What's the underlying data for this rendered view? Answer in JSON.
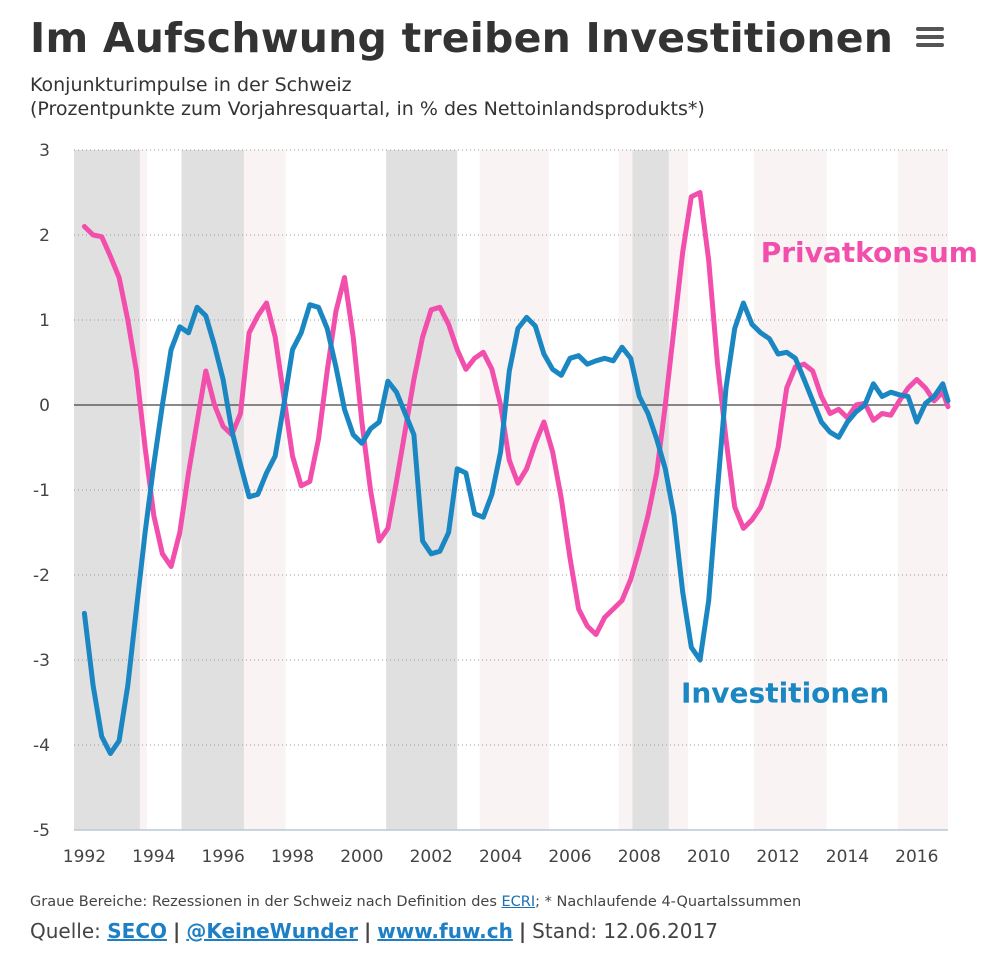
{
  "header": {
    "title": "Im Aufschwung treiben Investitionen",
    "subtitle_line1": "Konjunkturimpulse in der Schweiz",
    "subtitle_line2": "(Prozentpunkte zum Vorjahresquartal, in % des Nettoinlandsprodukts*)"
  },
  "footer": {
    "note_prefix": "Graue Bereiche: Rezessionen in der Schweiz nach Definition des ",
    "note_link": "ECRI",
    "note_suffix": "; * Nachlaufende 4-Quartalssummen",
    "source_label": "Quelle: ",
    "source_seco": "SECO",
    "source_twitter": "@KeineWunder",
    "source_web": "www.fuw.ch",
    "separator": "|",
    "stand": "Stand: 12.06.2017"
  },
  "colors": {
    "privatkonsum": "#f24fac",
    "investitionen": "#1b87c2",
    "recession": "#e0e0e0",
    "band": "#faf3f3",
    "grid": "#9a9a9a",
    "zero": "#444444"
  },
  "chart_data": {
    "type": "line",
    "title": "Im Aufschwung treiben Investitionen",
    "xlabel": "",
    "ylabel": "",
    "xlim": [
      1991.7,
      2016.9
    ],
    "ylim": [
      -5,
      3
    ],
    "yticks": [
      3,
      2,
      1,
      0,
      -1,
      -2,
      -3,
      -4,
      -5
    ],
    "xticks": [
      1992,
      1994,
      1996,
      1998,
      2000,
      2002,
      2004,
      2006,
      2008,
      2010,
      2012,
      2014,
      2016
    ],
    "recessions": [
      [
        1991.7,
        1993.6
      ],
      [
        1994.8,
        1996.6
      ],
      [
        2000.7,
        2002.75
      ],
      [
        2007.8,
        2008.85
      ]
    ],
    "bands": [
      [
        1993.6,
        1993.8
      ],
      [
        1996.6,
        1997.8
      ],
      [
        2003.4,
        2005.4
      ],
      [
        2007.4,
        2007.8
      ],
      [
        2008.85,
        2009.4
      ],
      [
        2011.3,
        2013.4
      ],
      [
        2015.45,
        2016.9
      ]
    ],
    "labels": [
      {
        "text": "Privatkonsum",
        "series": "privatkonsum",
        "x": 2011.5,
        "y": 1.68
      },
      {
        "text": "Investitionen",
        "series": "investitionen",
        "x": 2009.2,
        "y": -3.5
      }
    ],
    "series": [
      {
        "name": "Privatkonsum",
        "key": "privatkonsum",
        "points": [
          [
            1992.0,
            2.1
          ],
          [
            1992.25,
            2.0
          ],
          [
            1992.5,
            1.98
          ],
          [
            1992.75,
            1.75
          ],
          [
            1993.0,
            1.5
          ],
          [
            1993.25,
            1.0
          ],
          [
            1993.5,
            0.4
          ],
          [
            1993.75,
            -0.5
          ],
          [
            1994.0,
            -1.3
          ],
          [
            1994.25,
            -1.75
          ],
          [
            1994.5,
            -1.9
          ],
          [
            1994.75,
            -1.5
          ],
          [
            1995.0,
            -0.8
          ],
          [
            1995.25,
            -0.2
          ],
          [
            1995.5,
            0.4
          ],
          [
            1995.75,
            0.0
          ],
          [
            1996.0,
            -0.25
          ],
          [
            1996.25,
            -0.35
          ],
          [
            1996.5,
            -0.1
          ],
          [
            1996.75,
            0.85
          ],
          [
            1997.0,
            1.05
          ],
          [
            1997.25,
            1.2
          ],
          [
            1997.5,
            0.8
          ],
          [
            1997.75,
            0.1
          ],
          [
            1998.0,
            -0.6
          ],
          [
            1998.25,
            -0.95
          ],
          [
            1998.5,
            -0.9
          ],
          [
            1998.75,
            -0.4
          ],
          [
            1999.0,
            0.4
          ],
          [
            1999.25,
            1.1
          ],
          [
            1999.5,
            1.5
          ],
          [
            1999.75,
            0.8
          ],
          [
            2000.0,
            -0.2
          ],
          [
            2000.25,
            -1.0
          ],
          [
            2000.5,
            -1.6
          ],
          [
            2000.75,
            -1.45
          ],
          [
            2001.0,
            -0.9
          ],
          [
            2001.25,
            -0.3
          ],
          [
            2001.5,
            0.3
          ],
          [
            2001.75,
            0.8
          ],
          [
            2002.0,
            1.12
          ],
          [
            2002.25,
            1.15
          ],
          [
            2002.5,
            0.95
          ],
          [
            2002.75,
            0.65
          ],
          [
            2003.0,
            0.42
          ],
          [
            2003.25,
            0.55
          ],
          [
            2003.5,
            0.62
          ],
          [
            2003.75,
            0.42
          ],
          [
            2004.0,
            0.0
          ],
          [
            2004.25,
            -0.65
          ],
          [
            2004.5,
            -0.92
          ],
          [
            2004.75,
            -0.75
          ],
          [
            2005.0,
            -0.45
          ],
          [
            2005.25,
            -0.2
          ],
          [
            2005.5,
            -0.55
          ],
          [
            2005.75,
            -1.1
          ],
          [
            2006.0,
            -1.8
          ],
          [
            2006.25,
            -2.4
          ],
          [
            2006.5,
            -2.6
          ],
          [
            2006.75,
            -2.7
          ],
          [
            2007.0,
            -2.5
          ],
          [
            2007.25,
            -2.4
          ],
          [
            2007.5,
            -2.3
          ],
          [
            2007.75,
            -2.05
          ],
          [
            2008.0,
            -1.7
          ],
          [
            2008.25,
            -1.3
          ],
          [
            2008.5,
            -0.8
          ],
          [
            2008.75,
            0.0
          ],
          [
            2009.0,
            0.9
          ],
          [
            2009.25,
            1.8
          ],
          [
            2009.5,
            2.45
          ],
          [
            2009.75,
            2.5
          ],
          [
            2010.0,
            1.7
          ],
          [
            2010.25,
            0.5
          ],
          [
            2010.5,
            -0.4
          ],
          [
            2010.75,
            -1.2
          ],
          [
            2011.0,
            -1.45
          ],
          [
            2011.25,
            -1.35
          ],
          [
            2011.5,
            -1.2
          ],
          [
            2011.75,
            -0.9
          ],
          [
            2012.0,
            -0.5
          ],
          [
            2012.25,
            0.2
          ],
          [
            2012.5,
            0.45
          ],
          [
            2012.75,
            0.48
          ],
          [
            2013.0,
            0.4
          ],
          [
            2013.25,
            0.1
          ],
          [
            2013.5,
            -0.1
          ],
          [
            2013.75,
            -0.05
          ],
          [
            2014.0,
            -0.15
          ],
          [
            2014.25,
            0.0
          ],
          [
            2014.5,
            0.02
          ],
          [
            2014.75,
            -0.18
          ],
          [
            2015.0,
            -0.1
          ],
          [
            2015.25,
            -0.12
          ],
          [
            2015.5,
            0.05
          ],
          [
            2015.75,
            0.2
          ],
          [
            2016.0,
            0.3
          ],
          [
            2016.25,
            0.2
          ],
          [
            2016.5,
            0.05
          ],
          [
            2016.75,
            0.15
          ],
          [
            2016.9,
            -0.02
          ]
        ]
      },
      {
        "name": "Investitionen",
        "key": "investitionen",
        "points": [
          [
            1992.0,
            -2.45
          ],
          [
            1992.25,
            -3.3
          ],
          [
            1992.5,
            -3.9
          ],
          [
            1992.75,
            -4.1
          ],
          [
            1993.0,
            -3.95
          ],
          [
            1993.25,
            -3.3
          ],
          [
            1993.5,
            -2.4
          ],
          [
            1993.75,
            -1.5
          ],
          [
            1994.0,
            -0.7
          ],
          [
            1994.25,
            0.0
          ],
          [
            1994.5,
            0.65
          ],
          [
            1994.75,
            0.92
          ],
          [
            1995.0,
            0.85
          ],
          [
            1995.25,
            1.15
          ],
          [
            1995.5,
            1.05
          ],
          [
            1995.75,
            0.7
          ],
          [
            1996.0,
            0.3
          ],
          [
            1996.25,
            -0.3
          ],
          [
            1996.5,
            -0.7
          ],
          [
            1996.75,
            -1.08
          ],
          [
            1997.0,
            -1.05
          ],
          [
            1997.25,
            -0.8
          ],
          [
            1997.5,
            -0.6
          ],
          [
            1997.75,
            0.0
          ],
          [
            1998.0,
            0.65
          ],
          [
            1998.25,
            0.85
          ],
          [
            1998.5,
            1.18
          ],
          [
            1998.75,
            1.15
          ],
          [
            1999.0,
            0.9
          ],
          [
            1999.25,
            0.45
          ],
          [
            1999.5,
            -0.05
          ],
          [
            1999.75,
            -0.35
          ],
          [
            2000.0,
            -0.45
          ],
          [
            2000.25,
            -0.28
          ],
          [
            2000.5,
            -0.2
          ],
          [
            2000.75,
            0.28
          ],
          [
            2001.0,
            0.15
          ],
          [
            2001.25,
            -0.1
          ],
          [
            2001.5,
            -0.35
          ],
          [
            2001.75,
            -1.6
          ],
          [
            2002.0,
            -1.75
          ],
          [
            2002.25,
            -1.72
          ],
          [
            2002.5,
            -1.5
          ],
          [
            2002.75,
            -0.75
          ],
          [
            2003.0,
            -0.8
          ],
          [
            2003.25,
            -1.28
          ],
          [
            2003.5,
            -1.32
          ],
          [
            2003.75,
            -1.05
          ],
          [
            2004.0,
            -0.55
          ],
          [
            2004.25,
            0.4
          ],
          [
            2004.5,
            0.9
          ],
          [
            2004.75,
            1.03
          ],
          [
            2005.0,
            0.93
          ],
          [
            2005.25,
            0.6
          ],
          [
            2005.5,
            0.42
          ],
          [
            2005.75,
            0.35
          ],
          [
            2006.0,
            0.55
          ],
          [
            2006.25,
            0.58
          ],
          [
            2006.5,
            0.48
          ],
          [
            2006.75,
            0.52
          ],
          [
            2007.0,
            0.55
          ],
          [
            2007.25,
            0.52
          ],
          [
            2007.5,
            0.68
          ],
          [
            2007.75,
            0.55
          ],
          [
            2008.0,
            0.1
          ],
          [
            2008.25,
            -0.1
          ],
          [
            2008.5,
            -0.4
          ],
          [
            2008.75,
            -0.75
          ],
          [
            2009.0,
            -1.3
          ],
          [
            2009.25,
            -2.2
          ],
          [
            2009.5,
            -2.85
          ],
          [
            2009.75,
            -3.0
          ],
          [
            2010.0,
            -2.3
          ],
          [
            2010.25,
            -1.0
          ],
          [
            2010.5,
            0.2
          ],
          [
            2010.75,
            0.9
          ],
          [
            2011.0,
            1.2
          ],
          [
            2011.25,
            0.95
          ],
          [
            2011.5,
            0.85
          ],
          [
            2011.75,
            0.78
          ],
          [
            2012.0,
            0.6
          ],
          [
            2012.25,
            0.62
          ],
          [
            2012.5,
            0.55
          ],
          [
            2012.75,
            0.3
          ],
          [
            2013.0,
            0.05
          ],
          [
            2013.25,
            -0.2
          ],
          [
            2013.5,
            -0.32
          ],
          [
            2013.75,
            -0.38
          ],
          [
            2014.0,
            -0.2
          ],
          [
            2014.25,
            -0.08
          ],
          [
            2014.5,
            0.0
          ],
          [
            2014.75,
            0.25
          ],
          [
            2015.0,
            0.1
          ],
          [
            2015.25,
            0.15
          ],
          [
            2015.5,
            0.12
          ],
          [
            2015.75,
            0.1
          ],
          [
            2016.0,
            -0.2
          ],
          [
            2016.25,
            0.02
          ],
          [
            2016.5,
            0.1
          ],
          [
            2016.75,
            0.25
          ],
          [
            2016.9,
            0.05
          ]
        ]
      }
    ]
  }
}
